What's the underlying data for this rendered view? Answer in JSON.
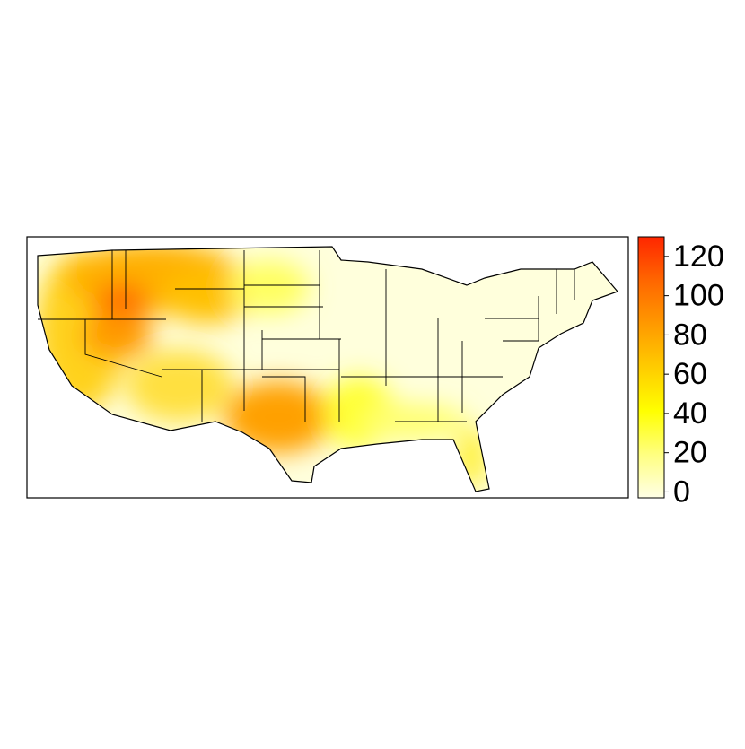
{
  "map": {
    "colorbar": {
      "lim": [
        -3,
        130
      ],
      "ticks": [
        0,
        20,
        40,
        60,
        80,
        100,
        120
      ],
      "colors": [
        "#ffffe6",
        "#ffff80",
        "#ffff00",
        "#ffcc00",
        "#ff9900",
        "#ff6600",
        "#ff2600"
      ]
    }
  }
}
